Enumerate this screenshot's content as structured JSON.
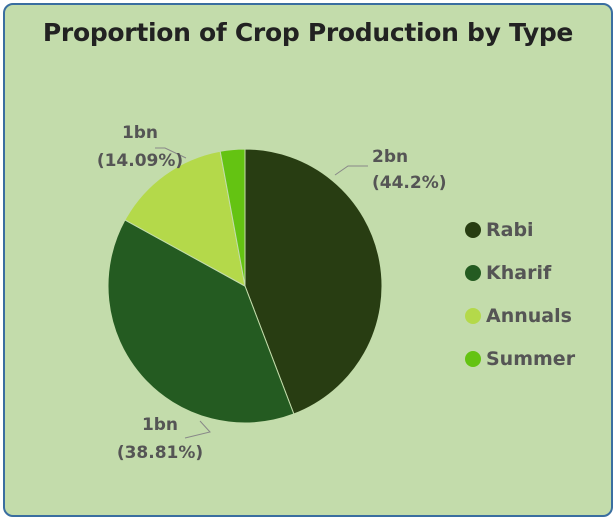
{
  "chart_data": {
    "type": "pie",
    "title": "Proportion of Crop Production by Type",
    "slices": [
      {
        "name": "Rabi",
        "percent": 44.2,
        "value_label": "2bn",
        "percent_label": "(44.2%)",
        "color": "#283d12"
      },
      {
        "name": "Kharif",
        "percent": 38.81,
        "value_label": "1bn",
        "percent_label": "(38.81%)",
        "color": "#245b21"
      },
      {
        "name": "Annuals",
        "percent": 14.09,
        "value_label": "1bn",
        "percent_label": "(14.09%)",
        "color": "#b4d94a"
      },
      {
        "name": "Summer",
        "percent": 2.9,
        "value_label": "",
        "percent_label": "",
        "color": "#64c312"
      }
    ],
    "legend_position": "right"
  }
}
